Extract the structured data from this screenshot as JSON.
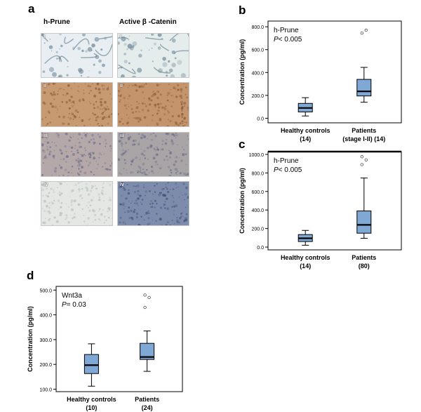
{
  "panel_a": {
    "letter": "a",
    "col1": "h-Prune",
    "col2": "Active β -Catenin",
    "rows": [
      "i",
      "ii",
      "iii",
      "iv"
    ],
    "tile_colors": [
      [
        "#e8eef2",
        "#e5ecec"
      ],
      [
        "#c89a72",
        "#c4946c"
      ],
      [
        "#b4a8a8",
        "#a9a5a6"
      ],
      [
        "#e4e7e4",
        "#7d8cab"
      ]
    ]
  },
  "chart_data": [
    {
      "letter": "b",
      "type": "box",
      "title": "h-Prune",
      "pvalue_prefix": "P",
      "pvalue_text": "< 0.005",
      "ylabel": "Concentration (pg/ml)",
      "ylim": [
        -40,
        850
      ],
      "yticks": [
        0.0,
        200.0,
        400.0,
        600.0,
        800.0
      ],
      "ytick_labels": [
        "0.0",
        "200.0",
        "400.0",
        "600.0",
        "800.0"
      ],
      "groups": [
        {
          "name": "Healthy controls",
          "n_label": "(14)",
          "whisker_low": 20,
          "q1": 55,
          "median": 90,
          "q3": 130,
          "whisker_high": 180,
          "outliers": []
        },
        {
          "name": "Patients",
          "n_label": "(stage I-II) (14)",
          "whisker_low": 140,
          "q1": 195,
          "median": 235,
          "q3": 340,
          "whisker_high": 445,
          "outliers": [
            745,
            770
          ]
        }
      ]
    },
    {
      "letter": "c",
      "type": "box",
      "title": "h-Prune",
      "pvalue_prefix": "P",
      "pvalue_text": "< 0.005",
      "ylabel": "Concentration (pg/ml)",
      "ylim": [
        -30,
        1030
      ],
      "yticks": [
        0.0,
        200.0,
        400.0,
        600.0,
        800.0,
        1000.0
      ],
      "ytick_labels": [
        "0.0",
        "200.0",
        "400.0",
        "600.0",
        "800.0",
        "1000.0"
      ],
      "top_border_bold": true,
      "groups": [
        {
          "name": "Healthy controls",
          "n_label": "(14)",
          "whisker_low": 20,
          "q1": 60,
          "median": 95,
          "q3": 135,
          "whisker_high": 180,
          "outliers": []
        },
        {
          "name": "Patients",
          "n_label": "(80)",
          "whisker_low": 95,
          "q1": 150,
          "median": 240,
          "q3": 390,
          "whisker_high": 745,
          "outliers": [
            890,
            940,
            975
          ]
        }
      ]
    },
    {
      "letter": "d",
      "type": "box",
      "title": "Wnt3a",
      "pvalue_prefix": "P",
      "pvalue_text": "= 0.03",
      "ylabel": "Concentration (pg/ml)",
      "ylim": [
        90,
        515
      ],
      "yticks": [
        100.0,
        200.0,
        300.0,
        400.0,
        500.0
      ],
      "ytick_labels": [
        "100.0",
        "200.0",
        "300.0",
        "400.0",
        "500.0"
      ],
      "groups": [
        {
          "name": "Healthy controls",
          "n_label": "(10)",
          "whisker_low": 112,
          "q1": 163,
          "median": 197,
          "q3": 240,
          "whisker_high": 283,
          "outliers": []
        },
        {
          "name": "Patients",
          "n_label": "(24)",
          "whisker_low": 172,
          "q1": 220,
          "median": 230,
          "q3": 285,
          "whisker_high": 335,
          "outliers": [
            430,
            470,
            480
          ]
        }
      ]
    }
  ]
}
